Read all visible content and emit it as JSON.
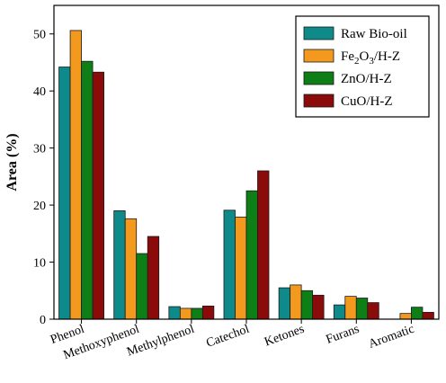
{
  "chart_data": {
    "type": "bar",
    "ylabel": "Area (%)",
    "xlabel": "",
    "ylim": [
      0,
      55
    ],
    "yticks": [
      0,
      10,
      20,
      30,
      40,
      50
    ],
    "grid": false,
    "legend_position": "top-right",
    "categories": [
      "Phenol",
      "Methoxyphenol",
      "Methylphenol",
      "Catechol",
      "Ketones",
      "Furans",
      "Aromatic"
    ],
    "series": [
      {
        "name": "Raw Bio-oil",
        "color": "#0f8a8a",
        "values": [
          44.2,
          19.0,
          2.2,
          19.1,
          5.5,
          2.5,
          0.0
        ]
      },
      {
        "name": "Fe2O3/H-Z",
        "color": "#f39a1e",
        "values": [
          50.6,
          17.6,
          1.9,
          17.9,
          6.0,
          4.0,
          1.0
        ]
      },
      {
        "name": "ZnO/H-Z",
        "color": "#0e7f16",
        "values": [
          45.2,
          11.5,
          1.9,
          22.5,
          5.0,
          3.7,
          2.1
        ]
      },
      {
        "name": "CuO/H-Z",
        "color": "#8b0b0b",
        "values": [
          43.3,
          14.5,
          2.3,
          26.0,
          4.2,
          2.9,
          1.2
        ]
      }
    ]
  }
}
